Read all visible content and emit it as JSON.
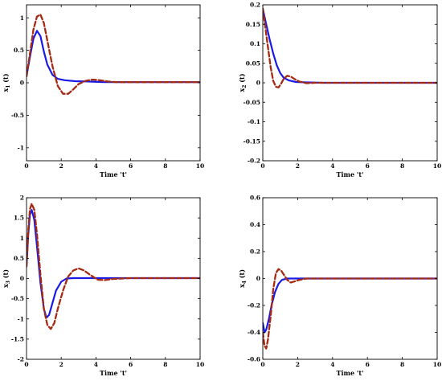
{
  "chart_data": [
    {
      "type": "line",
      "id": "x1",
      "xlabel": "Time 't'",
      "ylabel": "x1 (t)",
      "ylabel_main": "x",
      "ylabel_sub": "1",
      "ylabel_rest": " (t)",
      "xlim": [
        0,
        10
      ],
      "ylim": [
        -1.2,
        1.2
      ],
      "xticks": [
        0,
        2,
        4,
        6,
        8,
        10
      ],
      "yticks": [
        -1,
        -0.5,
        0,
        0.5,
        1
      ],
      "xticklabels": [
        "0",
        "2",
        "4",
        "6",
        "8",
        "10"
      ],
      "yticklabels": [
        "-1",
        "-0.5",
        "0",
        "0.5",
        "1"
      ],
      "grid": false,
      "series": [
        {
          "style": "solid",
          "color": "#1a1ae6",
          "x": [
            0,
            0.2,
            0.4,
            0.6,
            0.8,
            1.0,
            1.2,
            1.5,
            1.8,
            2.2,
            2.8,
            3.5,
            4.5,
            6,
            8,
            10
          ],
          "y": [
            0.1,
            0.4,
            0.68,
            0.8,
            0.72,
            0.48,
            0.28,
            0.12,
            0.06,
            0.04,
            0.025,
            0.02,
            0.01,
            0.01,
            0.01,
            0.01
          ]
        },
        {
          "style": "dashed",
          "color": "#a52a14",
          "x": [
            0,
            0.2,
            0.4,
            0.6,
            0.8,
            1.0,
            1.2,
            1.5,
            1.8,
            2.1,
            2.4,
            2.7,
            3.0,
            3.4,
            3.8,
            4.2,
            4.7,
            5.2,
            6,
            8,
            10
          ],
          "y": [
            0.1,
            0.45,
            0.82,
            1.02,
            1.05,
            0.92,
            0.65,
            0.25,
            -0.05,
            -0.17,
            -0.17,
            -0.1,
            -0.02,
            0.03,
            0.05,
            0.04,
            0.02,
            0.01,
            0.01,
            0.01,
            0.01
          ]
        }
      ]
    },
    {
      "type": "line",
      "id": "x2",
      "xlabel": "Time 't'",
      "ylabel": "x2 (t)",
      "ylabel_main": "x",
      "ylabel_sub": "2",
      "ylabel_rest": " (t)",
      "xlim": [
        0,
        10
      ],
      "ylim": [
        -0.2,
        0.2
      ],
      "xticks": [
        0,
        2,
        4,
        6,
        8,
        10
      ],
      "yticks": [
        -0.2,
        -0.15,
        -0.1,
        -0.05,
        0,
        0.05,
        0.1,
        0.15,
        0.2
      ],
      "xticklabels": [
        "0",
        "2",
        "4",
        "6",
        "8",
        "10"
      ],
      "yticklabels": [
        "-0.2",
        "-0.15",
        "-0.1",
        "-0.05",
        "0",
        "0.05",
        "0.1",
        "0.15",
        "0.2"
      ],
      "grid": false,
      "series": [
        {
          "style": "solid",
          "color": "#1a1ae6",
          "x": [
            0,
            0.2,
            0.4,
            0.6,
            0.8,
            1.0,
            1.2,
            1.5,
            1.9,
            2.5,
            3.5,
            5,
            10
          ],
          "y": [
            0.19,
            0.15,
            0.11,
            0.075,
            0.045,
            0.025,
            0.013,
            0.006,
            0.002,
            0.001,
            0,
            0,
            0
          ]
        },
        {
          "style": "dashed",
          "color": "#a52a14",
          "x": [
            0,
            0.15,
            0.3,
            0.45,
            0.6,
            0.75,
            0.9,
            1.05,
            1.2,
            1.4,
            1.6,
            1.8,
            2.1,
            2.5,
            3.0,
            3.5,
            4.5,
            10
          ],
          "y": [
            0.19,
            0.14,
            0.09,
            0.04,
            0.005,
            -0.01,
            -0.012,
            -0.002,
            0.01,
            0.018,
            0.016,
            0.01,
            0.003,
            -0.001,
            0,
            0,
            0,
            0
          ]
        }
      ]
    },
    {
      "type": "line",
      "id": "x3",
      "xlabel": "Time 't'",
      "ylabel": "x3 (t)",
      "ylabel_main": "x",
      "ylabel_sub": "3",
      "ylabel_rest": " (t)",
      "xlim": [
        0,
        10
      ],
      "ylim": [
        -2,
        2
      ],
      "xticks": [
        0,
        2,
        4,
        6,
        8,
        10
      ],
      "yticks": [
        -2,
        -1.5,
        -1,
        -0.5,
        0,
        0.5,
        1,
        1.5,
        2
      ],
      "xticklabels": [
        "0",
        "2",
        "4",
        "6",
        "8",
        "10"
      ],
      "yticklabels": [
        "-2",
        "-1.5",
        "-1",
        "-0.5",
        "0",
        "0.5",
        "1",
        "1.5",
        "2"
      ],
      "grid": false,
      "series": [
        {
          "style": "solid",
          "color": "#1a1ae6",
          "x": [
            0,
            0.1,
            0.2,
            0.3,
            0.45,
            0.6,
            0.8,
            1.0,
            1.15,
            1.3,
            1.5,
            1.7,
            2.0,
            2.3,
            2.7,
            3.2,
            4,
            5,
            10
          ],
          "y": [
            0.3,
            1.1,
            1.58,
            1.7,
            1.45,
            0.8,
            -0.1,
            -0.75,
            -0.97,
            -0.9,
            -0.6,
            -0.3,
            -0.08,
            0.0,
            0.01,
            0.01,
            0.01,
            0.01,
            0.01
          ]
        },
        {
          "style": "dashed",
          "color": "#a52a14",
          "x": [
            0,
            0.1,
            0.2,
            0.3,
            0.45,
            0.6,
            0.8,
            1.0,
            1.2,
            1.4,
            1.6,
            1.8,
            2.1,
            2.4,
            2.7,
            3.0,
            3.3,
            3.7,
            4.1,
            4.5,
            5.0,
            6,
            10
          ],
          "y": [
            0.3,
            1.2,
            1.72,
            1.85,
            1.7,
            1.1,
            0.1,
            -0.75,
            -1.15,
            -1.25,
            -1.1,
            -0.75,
            -0.3,
            0.05,
            0.2,
            0.25,
            0.2,
            0.08,
            -0.03,
            -0.04,
            -0.01,
            0.01,
            0.01
          ]
        }
      ]
    },
    {
      "type": "line",
      "id": "x4",
      "xlabel": "Time 't'",
      "ylabel": "x4 (t)",
      "ylabel_main": "x",
      "ylabel_sub": "4",
      "ylabel_rest": " (t)",
      "xlim": [
        0,
        10
      ],
      "ylim": [
        -0.6,
        0.6
      ],
      "xticks": [
        0,
        2,
        4,
        6,
        8,
        10
      ],
      "yticks": [
        -0.6,
        -0.4,
        -0.2,
        0,
        0.2,
        0.4,
        0.6
      ],
      "xticklabels": [
        "0",
        "2",
        "4",
        "6",
        "8",
        "10"
      ],
      "yticklabels": [
        "-0.6",
        "-0.4",
        "-0.2",
        "0",
        "0.2",
        "0.4",
        "0.6"
      ],
      "grid": false,
      "series": [
        {
          "style": "solid",
          "color": "#1a1ae6",
          "x": [
            0,
            0.1,
            0.2,
            0.35,
            0.5,
            0.7,
            0.9,
            1.1,
            1.4,
            1.8,
            2.5,
            4,
            10
          ],
          "y": [
            -0.33,
            -0.4,
            -0.38,
            -0.3,
            -0.2,
            -0.1,
            -0.04,
            -0.01,
            0.0,
            0.0,
            0.0,
            0.0,
            0.0
          ]
        },
        {
          "style": "dashed",
          "color": "#a52a14",
          "x": [
            0,
            0.1,
            0.2,
            0.3,
            0.45,
            0.6,
            0.75,
            0.9,
            1.05,
            1.2,
            1.4,
            1.6,
            1.85,
            2.1,
            2.5,
            3,
            4,
            10
          ],
          "y": [
            -0.4,
            -0.5,
            -0.52,
            -0.45,
            -0.28,
            -0.08,
            0.04,
            0.07,
            0.06,
            0.03,
            -0.01,
            -0.03,
            -0.02,
            -0.01,
            0.0,
            0.0,
            0.0,
            0.0
          ]
        }
      ]
    }
  ]
}
